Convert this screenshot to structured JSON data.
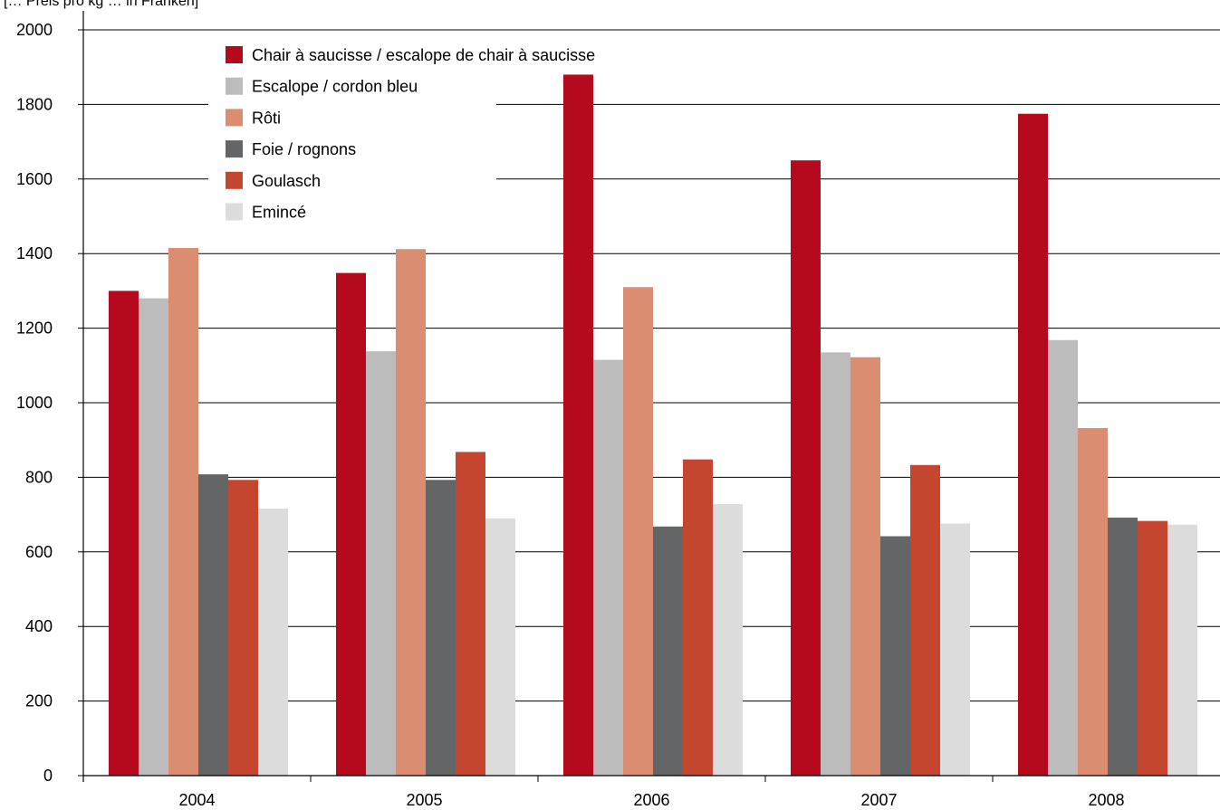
{
  "chart_data": {
    "type": "bar",
    "title": "",
    "ylabel": "[… Preis pro kg … in Franken]",
    "xlabel": "",
    "categories": [
      "2004",
      "2005",
      "2006",
      "2007",
      "2008"
    ],
    "ylim": [
      0,
      2000
    ],
    "yticks": [
      0,
      200,
      400,
      600,
      800,
      1000,
      1200,
      1400,
      1600,
      1800,
      2000
    ],
    "grid": "horizontal",
    "legend_position": "top-left",
    "series": [
      {
        "name": "Chair à saucisse / escalope de chair à saucisse",
        "color": "#b50a1e",
        "values": [
          1300,
          1348,
          1880,
          1650,
          1775
        ]
      },
      {
        "name": "Escalope / cordon bleu",
        "color": "#bcbcbc",
        "values": [
          1280,
          1138,
          1115,
          1135,
          1168
        ]
      },
      {
        "name": "Rôti",
        "color": "#da8d70",
        "values": [
          1415,
          1412,
          1310,
          1122,
          932
        ]
      },
      {
        "name": "Foie / rognons",
        "color": "#646566",
        "values": [
          808,
          793,
          668,
          642,
          692
        ]
      },
      {
        "name": "Goulasch",
        "color": "#c5462f",
        "values": [
          793,
          868,
          848,
          833,
          683
        ]
      },
      {
        "name": "Emincé",
        "color": "#dcdcdc",
        "values": [
          716,
          690,
          728,
          676,
          673
        ]
      }
    ]
  }
}
